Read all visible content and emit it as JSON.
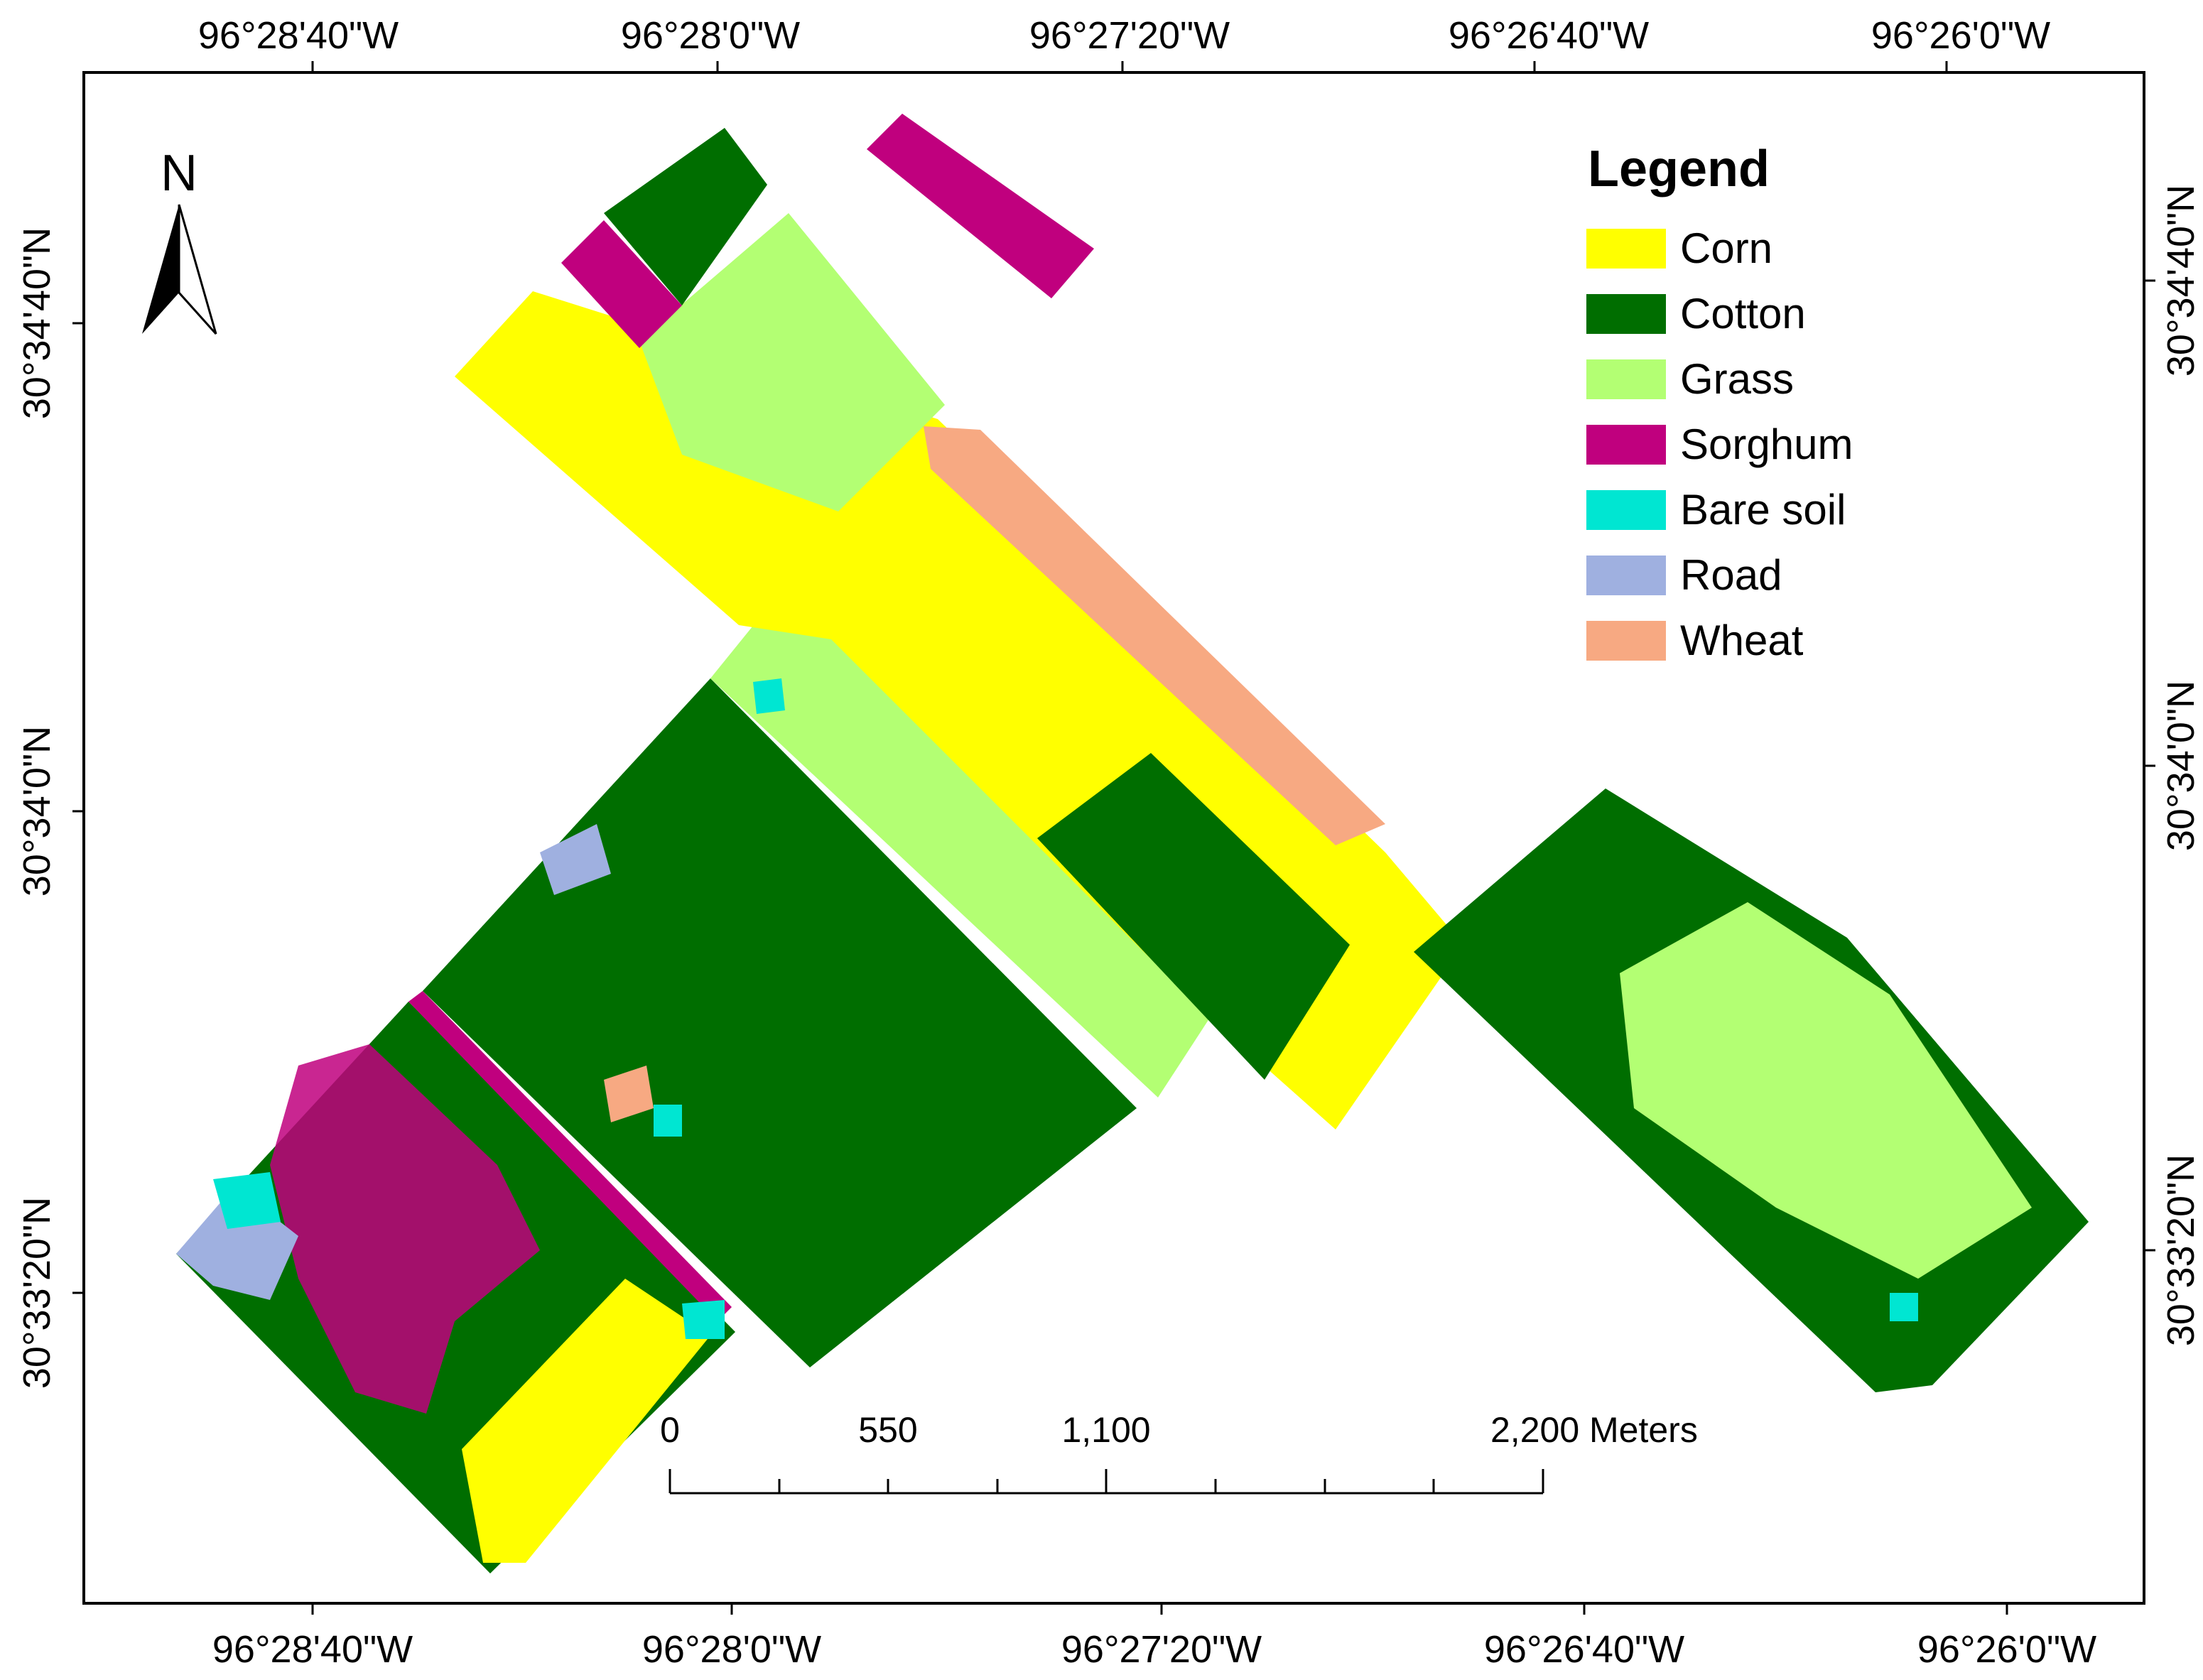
{
  "map": {
    "top_longitudes": [
      "96°28'40\"W",
      "96°28'0\"W",
      "96°27'20\"W",
      "96°26'40\"W",
      "96°26'0\"W"
    ],
    "bottom_longitudes": [
      "96°28'40\"W",
      "96°28'0\"W",
      "96°27'20\"W",
      "96°26'40\"W",
      "96°26'0\"W"
    ],
    "left_latitudes": [
      "30°34'40\"N",
      "30°34'0\"N",
      "30°33'20\"N"
    ],
    "right_latitudes": [
      "30°34'40\"N",
      "30°34'0\"N",
      "30°33'20\"N"
    ]
  },
  "north_arrow": {
    "label": "N",
    "icon": "north-arrow-icon"
  },
  "legend": {
    "title": "Legend",
    "items": [
      {
        "label": "Corn",
        "color": "#ffff00"
      },
      {
        "label": "Cotton",
        "color": "#006e00"
      },
      {
        "label": "Grass",
        "color": "#b3ff73"
      },
      {
        "label": "Sorghum",
        "color": "#c0007e"
      },
      {
        "label": "Bare soil",
        "color": "#00e6d2"
      },
      {
        "label": "Road",
        "color": "#9fb0e0"
      },
      {
        "label": "Wheat",
        "color": "#f7a982"
      }
    ]
  },
  "scale_bar": {
    "labels": [
      "0",
      "550",
      "1,100",
      "2,200 Meters"
    ]
  }
}
